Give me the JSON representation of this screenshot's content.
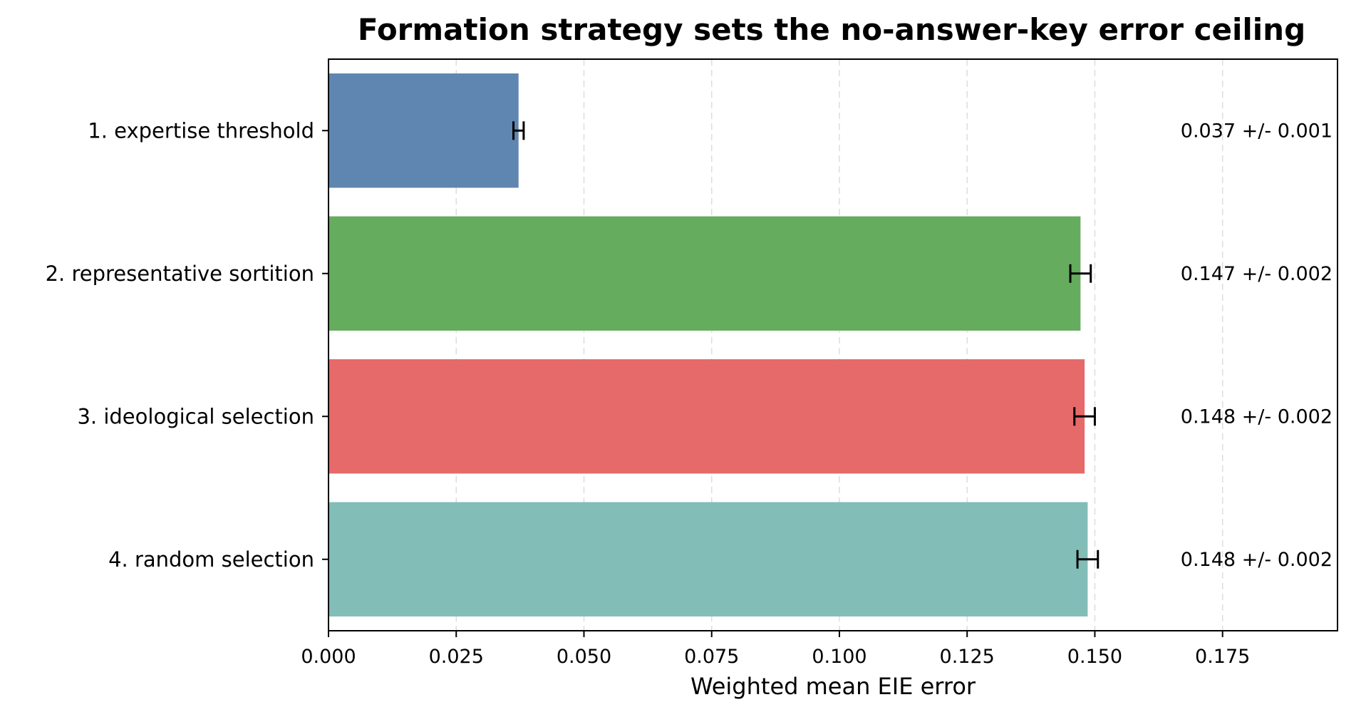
{
  "chart_data": {
    "type": "bar",
    "orientation": "horizontal",
    "title": "Formation strategy sets the no-answer-key error ceiling",
    "xlabel": "Weighted mean EIE error",
    "ylabel": "",
    "xlim": [
      0,
      0.1975
    ],
    "x_ticks": [
      "0.000",
      "0.025",
      "0.050",
      "0.075",
      "0.100",
      "0.125",
      "0.150",
      "0.175"
    ],
    "grid": "vertical dashed",
    "categories": [
      "1. expertise threshold",
      "2. representative sortition",
      "3. ideological selection",
      "4. random selection"
    ],
    "values": [
      0.0372,
      0.1472,
      0.148,
      0.1486
    ],
    "errors": [
      0.001,
      0.002,
      0.002,
      0.002
    ],
    "value_labels": [
      "0.037 +/- 0.001",
      "0.147 +/- 0.002",
      "0.148 +/- 0.002",
      "0.148 +/- 0.002"
    ],
    "colors": [
      "#5f86b0",
      "#65ac5e",
      "#e56a69",
      "#82bdb8"
    ]
  }
}
